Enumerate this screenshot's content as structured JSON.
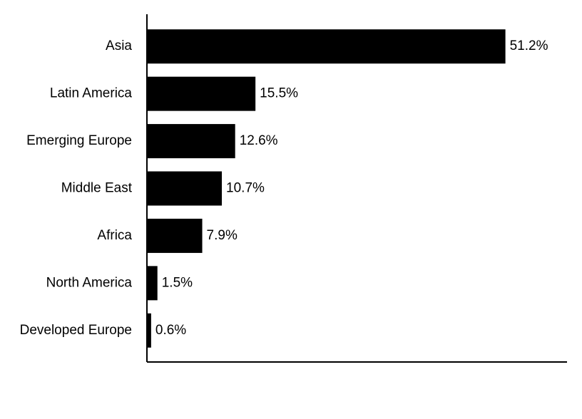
{
  "chart_data": {
    "type": "hbar",
    "categories": [
      "Asia",
      "Latin America",
      "Emerging Europe",
      "Middle East",
      "Africa",
      "North America",
      "Developed Europe"
    ],
    "values": [
      51.2,
      15.5,
      12.6,
      10.7,
      7.9,
      1.5,
      0.6
    ],
    "value_labels": [
      "51.2%",
      "15.5%",
      "12.6%",
      "10.7%",
      "7.9%",
      "1.5%",
      "0.6%"
    ],
    "color": "#000000",
    "xlim": [
      0,
      60
    ]
  }
}
